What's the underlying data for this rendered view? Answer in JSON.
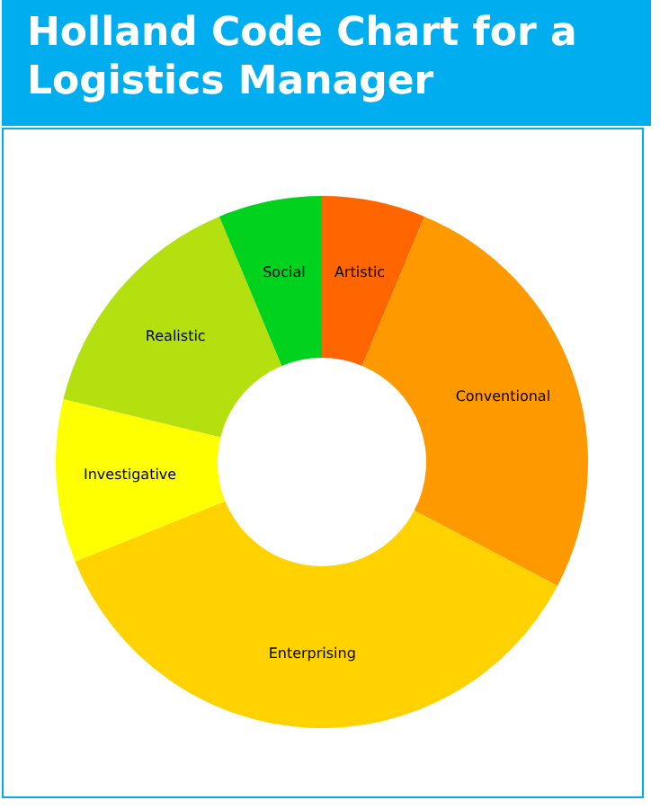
{
  "chart_data": {
    "type": "donut",
    "title": "Holland Code Chart for a Logistics Manager",
    "categories": [
      "Artistic",
      "Conventional",
      "Enterprising",
      "Investigative",
      "Realistic",
      "Social"
    ],
    "values": [
      6.3,
      26.4,
      36.2,
      9.9,
      14.9,
      6.3
    ],
    "colors": [
      "#ff6600",
      "#ff9900",
      "#ffd200",
      "#ffff00",
      "#b5e00f",
      "#00d21e"
    ],
    "legend": false
  }
}
